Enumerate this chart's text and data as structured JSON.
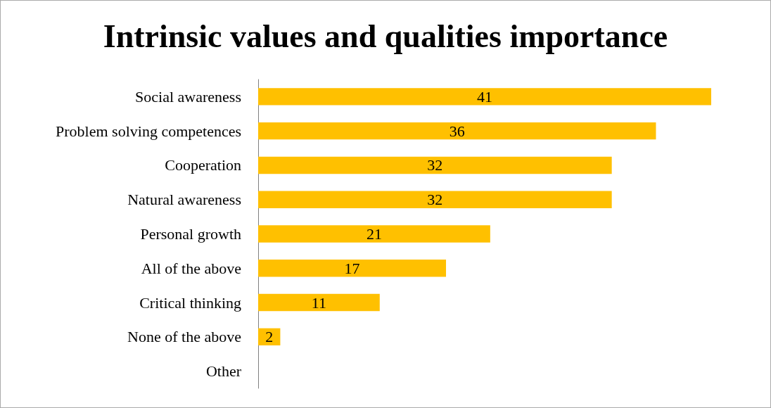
{
  "chart_data": {
    "type": "bar",
    "orientation": "horizontal",
    "title": "Intrinsic values and qualities importance",
    "categories": [
      "Social awareness",
      "Problem solving competences",
      "Cooperation",
      "Natural awareness",
      "Personal growth",
      "All of the above",
      "Critical thinking",
      "None of the above",
      "Other"
    ],
    "values": [
      41,
      36,
      32,
      32,
      21,
      17,
      11,
      2,
      0
    ],
    "value_labels": [
      "41",
      "36",
      "32",
      "32",
      "21",
      "17",
      "11",
      "2",
      null
    ],
    "color": "#ffc000"
  }
}
